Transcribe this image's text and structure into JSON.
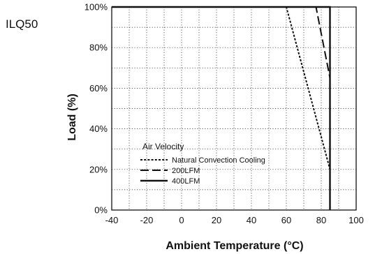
{
  "chart_data": {
    "type": "line",
    "title": "ILQ50",
    "xlabel": "Ambient Temperature (°C)",
    "ylabel": "Load (%)",
    "xlim": [
      -40,
      100
    ],
    "ylim": [
      0,
      100
    ],
    "x_ticks": [
      "-40",
      "-20",
      "0",
      "20",
      "40",
      "60",
      "80",
      "100"
    ],
    "y_ticks": [
      "0%",
      "20%",
      "40%",
      "60%",
      "80%",
      "100%"
    ],
    "grid": true,
    "legend_title": "Air Velocity",
    "legend_position": "bottom-left",
    "series": [
      {
        "name": "Natural Convection Cooling",
        "style": "dotted",
        "points": [
          [
            -40,
            100
          ],
          [
            60,
            100
          ],
          [
            85,
            20
          ]
        ]
      },
      {
        "name": "200LFM",
        "style": "dashed",
        "points": [
          [
            -40,
            100
          ],
          [
            77,
            100
          ],
          [
            85,
            65
          ]
        ]
      },
      {
        "name": "400LFM",
        "style": "solid",
        "points": [
          [
            -40,
            100
          ],
          [
            85,
            100
          ],
          [
            85,
            0
          ]
        ]
      }
    ]
  }
}
